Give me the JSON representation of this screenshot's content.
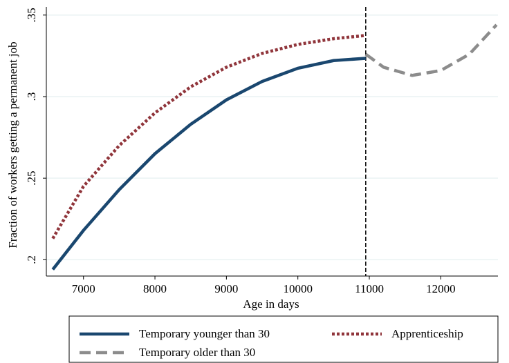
{
  "chart_data": {
    "type": "line",
    "x_label": "Age in days",
    "y_label": "Fraction of workers getting a permanent job",
    "xlim": [
      6480,
      12800
    ],
    "ylim": [
      0.19,
      0.355
    ],
    "xticks": [
      7000,
      8000,
      9000,
      10000,
      11000,
      12000
    ],
    "yticks": [
      {
        "value": 0.2,
        "label": ".2"
      },
      {
        "value": 0.25,
        "label": ".25"
      },
      {
        "value": 0.3,
        "label": ".3"
      },
      {
        "value": 0.35,
        "label": ".35"
      }
    ],
    "grid": true,
    "vline": 10950,
    "legend": "bottom",
    "series": [
      {
        "name": "Temporary younger than 30",
        "color": "#1a476f",
        "dash": "solid",
        "x": [
          6570,
          7000,
          7500,
          8000,
          8500,
          9000,
          9500,
          10000,
          10500,
          10950
        ],
        "values": [
          0.194,
          0.218,
          0.243,
          0.265,
          0.283,
          0.298,
          0.3093,
          0.3174,
          0.3221,
          0.3235
        ]
      },
      {
        "name": "Apprenticeship",
        "color": "#90353b",
        "dash": "dot",
        "x": [
          6570,
          7000,
          7500,
          8000,
          8500,
          9000,
          9500,
          10000,
          10500,
          10950
        ],
        "values": [
          0.213,
          0.245,
          0.27,
          0.29,
          0.306,
          0.318,
          0.3265,
          0.332,
          0.3355,
          0.3375
        ]
      },
      {
        "name": "Temporary older than 30",
        "color": "#8c8c8c",
        "dash": "dash",
        "x": [
          10950,
          11200,
          11600,
          12000,
          12400,
          12780
        ],
        "values": [
          0.326,
          0.318,
          0.313,
          0.316,
          0.326,
          0.344
        ]
      }
    ]
  }
}
